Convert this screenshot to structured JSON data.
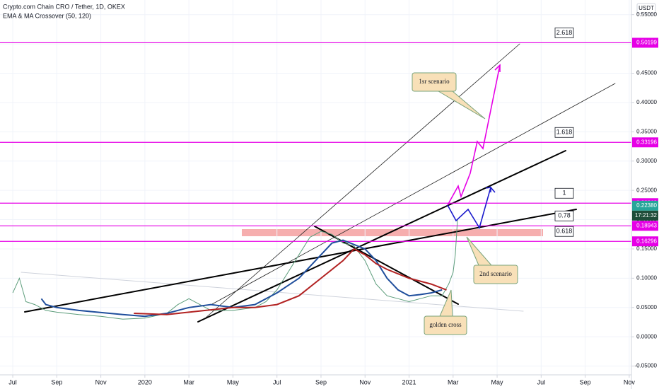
{
  "chart_data": {
    "type": "line",
    "title": "Crypto.com Chain CRO / Tether, 1D, OKEX",
    "subtitle": "EMA & MA Crossover (50, 120)",
    "currency": "USDT",
    "xlim": [
      -0.58,
      28.1
    ],
    "xticks": [
      {
        "value": 0,
        "label": "Jul"
      },
      {
        "value": 2,
        "label": "Sep"
      },
      {
        "value": 4,
        "label": "Nov"
      },
      {
        "value": 6,
        "label": "2020"
      },
      {
        "value": 8,
        "label": "Mar"
      },
      {
        "value": 10,
        "label": "May"
      },
      {
        "value": 12,
        "label": "Jul"
      },
      {
        "value": 14,
        "label": "Sep"
      },
      {
        "value": 16,
        "label": "Nov"
      },
      {
        "value": 18,
        "label": "2021"
      },
      {
        "value": 20,
        "label": "Mar"
      },
      {
        "value": 22,
        "label": "May"
      },
      {
        "value": 24,
        "label": "Jul"
      },
      {
        "value": 26,
        "label": "Sep"
      },
      {
        "value": 28,
        "label": "Nov"
      }
    ],
    "ylim": [
      -0.065,
      0.575
    ],
    "yticks": [
      {
        "value": -0.05,
        "label": "-0.05000"
      },
      {
        "value": 0,
        "label": "0.00000"
      },
      {
        "value": 0.05,
        "label": "0.05000"
      },
      {
        "value": 0.1,
        "label": "0.10000"
      },
      {
        "value": 0.15,
        "label": "0.15000"
      },
      {
        "value": 0.2,
        "label": "0.20000"
      },
      {
        "value": 0.25,
        "label": "0.25000"
      },
      {
        "value": 0.3,
        "label": "0.30000"
      },
      {
        "value": 0.35,
        "label": "0.35000"
      },
      {
        "value": 0.4,
        "label": "0.40000"
      },
      {
        "value": 0.45,
        "label": "0.45000"
      },
      {
        "value": 0.5,
        "label": "0.50000"
      },
      {
        "value": 0.55,
        "label": "0.55000"
      }
    ],
    "grid": true,
    "series": [
      {
        "color": "#5b9c7a",
        "x": [
          0,
          0.3,
          0.6,
          1,
          1.5,
          2,
          3,
          4,
          5,
          6,
          7,
          7.5,
          8,
          8.5,
          9,
          10,
          11,
          11.5,
          12,
          12.5,
          13,
          13.5,
          14,
          14.5,
          15,
          15.5,
          16,
          16.5,
          17,
          17.5,
          18,
          18.5,
          19,
          19.5,
          19.8,
          20,
          20.1,
          20.2
        ],
        "values": [
          0.075,
          0.1,
          0.06,
          0.055,
          0.045,
          0.042,
          0.038,
          0.035,
          0.03,
          0.032,
          0.04,
          0.055,
          0.065,
          0.055,
          0.045,
          0.045,
          0.05,
          0.06,
          0.08,
          0.11,
          0.14,
          0.17,
          0.18,
          0.175,
          0.16,
          0.155,
          0.13,
          0.09,
          0.07,
          0.065,
          0.06,
          0.065,
          0.07,
          0.07,
          0.09,
          0.11,
          0.14,
          0.2
        ]
      },
      {
        "color": "#1f4e9c",
        "x": [
          1.3,
          1.5,
          2,
          3,
          5,
          6,
          7,
          8,
          9,
          10,
          11,
          12,
          13,
          14,
          14.5,
          15,
          16,
          16.5,
          17,
          17.5,
          18,
          18.5,
          19,
          19.5
        ],
        "values": [
          0.065,
          0.055,
          0.05,
          0.045,
          0.038,
          0.035,
          0.04,
          0.05,
          0.055,
          0.05,
          0.055,
          0.075,
          0.1,
          0.14,
          0.16,
          0.165,
          0.15,
          0.13,
          0.1,
          0.08,
          0.07,
          0.072,
          0.075,
          0.08
        ]
      },
      {
        "color": "#b22222",
        "x": [
          5.5,
          7,
          8,
          10,
          11,
          12,
          13,
          14,
          15,
          15.5,
          16,
          16.5,
          17,
          18,
          19,
          19.7
        ],
        "values": [
          0.04,
          0.038,
          0.042,
          0.05,
          0.05,
          0.055,
          0.07,
          0.1,
          0.13,
          0.15,
          0.14,
          0.125,
          0.115,
          0.1,
          0.09,
          0.08
        ]
      }
    ],
    "levels": [
      {
        "ratio": 2.618,
        "value": 0.50199
      },
      {
        "ratio": 1.618,
        "value": 0.33196
      },
      {
        "ratio": 1,
        "value": 0.22812
      },
      {
        "ratio": 0.78,
        "value": 0.18943
      },
      {
        "ratio": 0.618,
        "value": 0.16296
      }
    ],
    "last_price": {
      "value": 0.2238,
      "label": "0.22380"
    },
    "countdown": "17:21:32",
    "annotations": [
      "1sr scenario",
      "2nd scenario",
      "golden cross"
    ]
  }
}
